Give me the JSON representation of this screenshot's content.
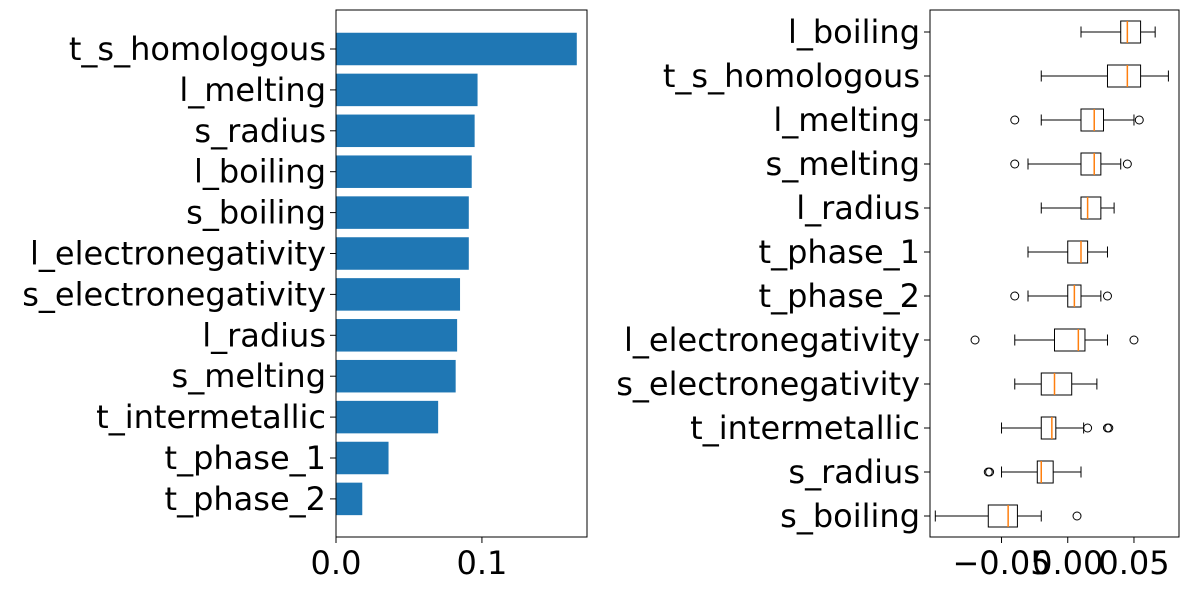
{
  "colors": {
    "bar": "#1f77b4",
    "median": "#ff7f0e",
    "frame": "#000000",
    "background": "#ffffff"
  },
  "chart_data": [
    {
      "type": "bar",
      "orientation": "horizontal",
      "categories": [
        "t_s_homologous",
        "l_melting",
        "s_radius",
        "l_boiling",
        "s_boiling",
        "l_electronegativity",
        "s_electronegativity",
        "l_radius",
        "s_melting",
        "t_intermetallic",
        "t_phase_1",
        "t_phase_2"
      ],
      "values": [
        0.165,
        0.097,
        0.095,
        0.093,
        0.091,
        0.091,
        0.085,
        0.083,
        0.082,
        0.07,
        0.036,
        0.018
      ],
      "xlim": [
        0.0,
        0.172
      ],
      "xticks": [
        0.0,
        0.1
      ],
      "xtick_labels": [
        "0.0",
        "0.1"
      ],
      "grid": false
    },
    {
      "type": "box",
      "orientation": "horizontal",
      "categories": [
        "l_boiling",
        "t_s_homologous",
        "l_melting",
        "s_melting",
        "l_radius",
        "t_phase_1",
        "t_phase_2",
        "l_electronegativity",
        "s_electronegativity",
        "t_intermetallic",
        "s_radius",
        "s_boiling"
      ],
      "boxes": [
        {
          "whislo": 0.01,
          "q1": 0.04,
          "med": 0.045,
          "q3": 0.055,
          "whishi": 0.066,
          "fliers": []
        },
        {
          "whislo": -0.02,
          "q1": 0.03,
          "med": 0.045,
          "q3": 0.055,
          "whishi": 0.076,
          "fliers": []
        },
        {
          "whislo": -0.02,
          "q1": 0.01,
          "med": 0.02,
          "q3": 0.027,
          "whishi": 0.05,
          "fliers": [
            -0.04,
            0.054
          ]
        },
        {
          "whislo": -0.03,
          "q1": 0.01,
          "med": 0.02,
          "q3": 0.025,
          "whishi": 0.04,
          "fliers": [
            -0.04,
            0.045
          ]
        },
        {
          "whislo": -0.02,
          "q1": 0.01,
          "med": 0.015,
          "q3": 0.025,
          "whishi": 0.035,
          "fliers": []
        },
        {
          "whislo": -0.03,
          "q1": 0.0,
          "med": 0.01,
          "q3": 0.015,
          "whishi": 0.03,
          "fliers": []
        },
        {
          "whislo": -0.03,
          "q1": 0.0,
          "med": 0.005,
          "q3": 0.01,
          "whishi": 0.025,
          "fliers": [
            -0.04,
            0.03
          ]
        },
        {
          "whislo": -0.04,
          "q1": -0.01,
          "med": 0.008,
          "q3": 0.013,
          "whishi": 0.03,
          "fliers": [
            -0.07,
            0.05
          ]
        },
        {
          "whislo": -0.04,
          "q1": -0.02,
          "med": -0.01,
          "q3": 0.003,
          "whishi": 0.022,
          "fliers": []
        },
        {
          "whislo": -0.05,
          "q1": -0.02,
          "med": -0.012,
          "q3": -0.009,
          "whishi": 0.012,
          "fliers": [
            0.015,
            0.03,
            0.031
          ]
        },
        {
          "whislo": -0.05,
          "q1": -0.023,
          "med": -0.02,
          "q3": -0.011,
          "whishi": 0.01,
          "fliers": [
            -0.06,
            -0.059
          ]
        },
        {
          "whislo": -0.1,
          "q1": -0.06,
          "med": -0.045,
          "q3": -0.038,
          "whishi": -0.02,
          "fliers": [
            0.007
          ]
        }
      ],
      "xlim": [
        -0.104,
        0.084
      ],
      "xticks": [
        -0.05,
        0.0,
        0.05
      ],
      "xtick_labels": [
        "−0.05",
        "0.00",
        "0.05"
      ],
      "grid": false
    }
  ]
}
